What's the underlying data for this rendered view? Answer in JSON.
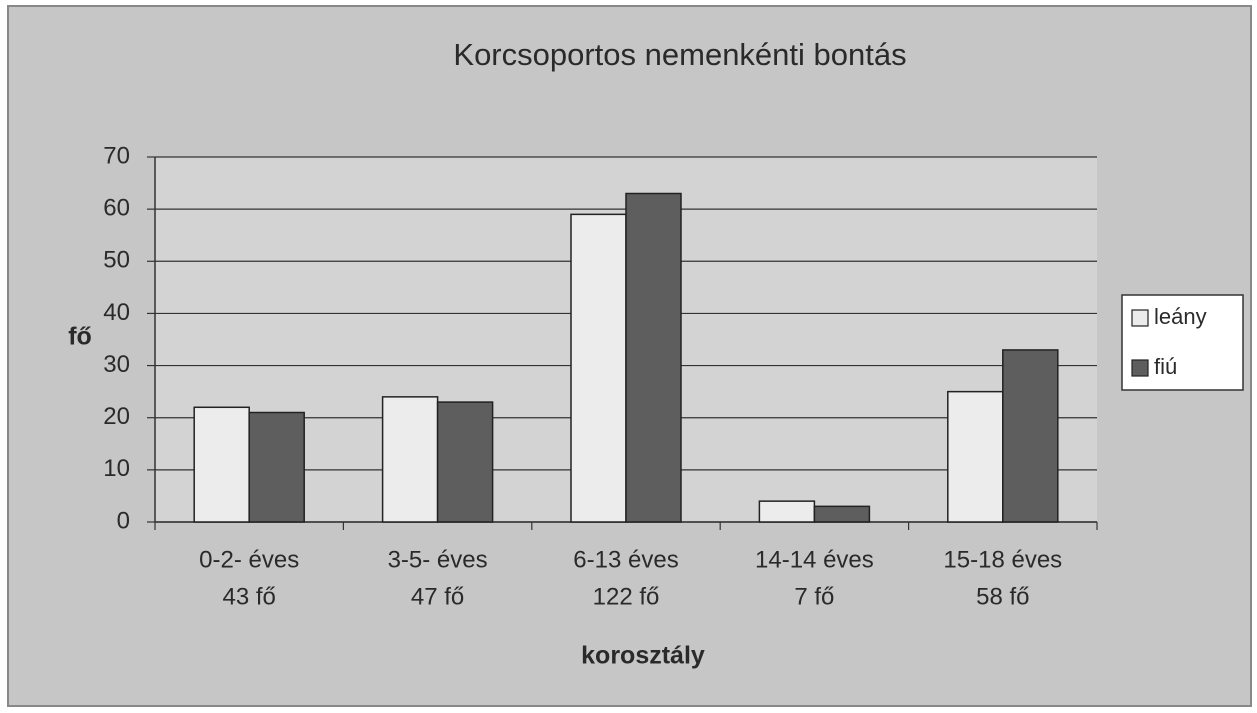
{
  "chart_data": {
    "type": "bar",
    "title": "Korcsoportos nemenkénti bontás",
    "x_label": "korosztály",
    "y_label": "fő",
    "categories": [
      [
        "0-2- éves",
        "43 fő"
      ],
      [
        "3-5- éves",
        "47 fő"
      ],
      [
        "6-13 éves",
        "122 fő"
      ],
      [
        "14-14 éves",
        "7 fő"
      ],
      [
        "15-18 éves",
        "58 fő"
      ]
    ],
    "series": [
      {
        "name": "leány",
        "color": "#ececec",
        "values": [
          22,
          24,
          59,
          4,
          25
        ]
      },
      {
        "name": "fiú",
        "color": "#5e5e5e",
        "values": [
          21,
          23,
          63,
          3,
          33
        ]
      }
    ],
    "ylim": [
      0,
      70
    ],
    "yticks": [
      0,
      10,
      20,
      30,
      40,
      50,
      60,
      70
    ],
    "grid": true,
    "legend": "right"
  }
}
